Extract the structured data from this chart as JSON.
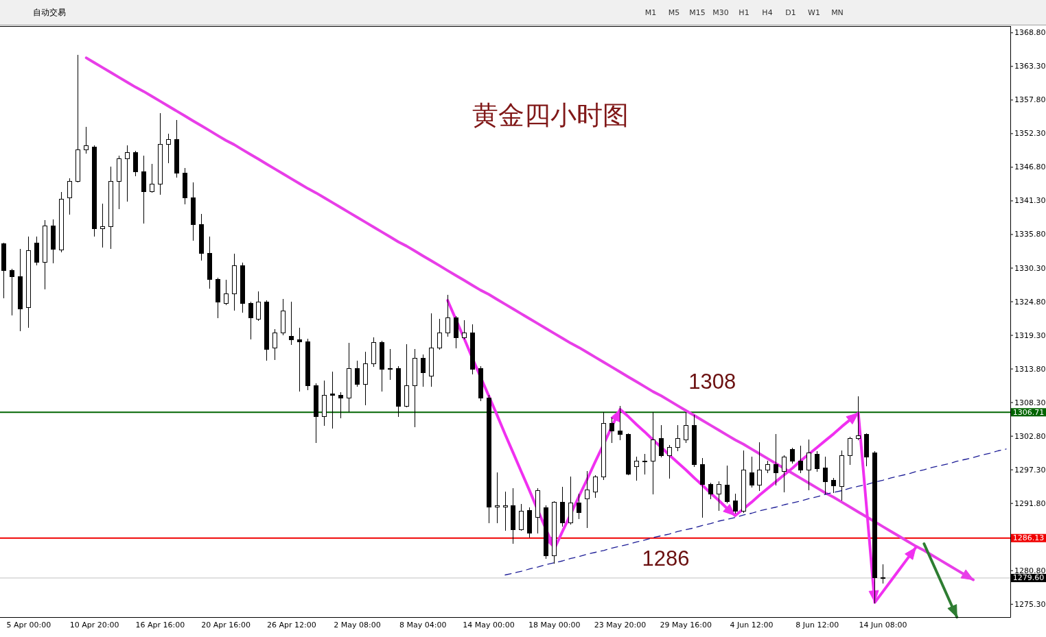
{
  "chart_data": [
    {
      "type": "other",
      "annotations": [
        "自动交易",
        "M1",
        "M5",
        "M15",
        "M30",
        "H1",
        "H4",
        "D1",
        "W1",
        "MN"
      ]
    },
    {
      "type": "candlestick",
      "title": "黄金四小时图",
      "color": "#000000",
      "categories": [
        null,
        null,
        null,
        "5 Apr 00:00",
        null,
        null,
        null,
        null,
        null,
        null,
        null,
        "10 Apr 20:00",
        null,
        null,
        null,
        null,
        null,
        null,
        null,
        "16 Apr 16:00",
        null,
        null,
        null,
        null,
        null,
        null,
        null,
        "20 Apr 16:00",
        null,
        null,
        null,
        null,
        null,
        null,
        null,
        "26 Apr 12:00",
        null,
        null,
        null,
        null,
        null,
        null,
        null,
        "2 May 08:00",
        null,
        null,
        null,
        null,
        null,
        null,
        null,
        "8 May 04:00",
        null,
        null,
        null,
        null,
        null,
        null,
        null,
        "14 May 00:00",
        null,
        null,
        null,
        null,
        null,
        null,
        null,
        "18 May 00:00",
        null,
        null,
        null,
        null,
        null,
        null,
        null,
        "23 May 20:00",
        null,
        null,
        null,
        null,
        null,
        null,
        null,
        "29 May 16:00",
        null,
        null,
        null,
        null,
        null,
        null,
        null,
        "4 Jun 12:00",
        null,
        null,
        null,
        null,
        null,
        null,
        null,
        "8 Jun 12:00",
        null,
        null,
        null,
        null,
        null,
        null,
        null,
        "14 Jun 08:00",
        null,
        null,
        null,
        null,
        null,
        null,
        null,
        null,
        null,
        null,
        null,
        null,
        null,
        null,
        null
      ],
      "ohlc": [
        [
          1334.3,
          1334.5,
          1325.5,
          1330.0
        ],
        [
          1330.0,
          1330.2,
          1322.7,
          1328.9
        ],
        [
          1328.9,
          1333.4,
          1320.1,
          1323.7
        ],
        [
          1323.9,
          1335.5,
          1320.7,
          1333.2
        ],
        [
          1334.5,
          1335.5,
          1330.9,
          1331.3
        ],
        [
          1331.3,
          1338.1,
          1326.9,
          1337.3
        ],
        [
          1337.3,
          1338.3,
          1331.2,
          1333.4
        ],
        [
          1333.3,
          1342.8,
          1333.0,
          1341.6
        ],
        [
          1341.8,
          1345.0,
          1339.2,
          1344.6
        ],
        [
          1344.6,
          1365.2,
          1344.4,
          1349.7
        ],
        [
          1349.7,
          1353.4,
          1349.1,
          1350.4
        ],
        [
          1350.2,
          1350.4,
          1335.6,
          1336.8
        ],
        [
          1336.8,
          1340.9,
          1333.8,
          1337.1
        ],
        [
          1337.1,
          1346.9,
          1333.6,
          1344.6
        ],
        [
          1344.6,
          1348.7,
          1340.1,
          1348.2
        ],
        [
          1348.2,
          1350.4,
          1341.3,
          1349.3
        ],
        [
          1349.3,
          1349.5,
          1345.4,
          1346.1
        ],
        [
          1346.1,
          1348.7,
          1337.7,
          1342.9
        ],
        [
          1342.9,
          1347.4,
          1342.7,
          1344.1
        ],
        [
          1344.1,
          1355.7,
          1342.4,
          1350.6
        ],
        [
          1350.6,
          1352.3,
          1347.6,
          1351.4
        ],
        [
          1351.4,
          1354.5,
          1345.2,
          1345.9
        ],
        [
          1345.9,
          1346.7,
          1340.9,
          1341.8
        ],
        [
          1341.8,
          1344.3,
          1334.9,
          1337.5
        ],
        [
          1337.5,
          1339.2,
          1331.7,
          1332.8
        ],
        [
          1332.8,
          1335.5,
          1327.0,
          1328.5
        ],
        [
          1328.5,
          1328.7,
          1322.2,
          1324.8
        ],
        [
          1324.6,
          1328.4,
          1324.4,
          1326.1
        ],
        [
          1326.1,
          1332.7,
          1323.5,
          1330.8
        ],
        [
          1330.8,
          1331.2,
          1323.1,
          1324.6
        ],
        [
          1324.6,
          1324.8,
          1318.8,
          1322.2
        ],
        [
          1322.0,
          1326.5,
          1321.8,
          1324.8
        ],
        [
          1324.8,
          1325.0,
          1315.3,
          1317.1
        ],
        [
          1317.3,
          1320.3,
          1315.4,
          1319.8
        ],
        [
          1319.8,
          1325.2,
          1319.4,
          1323.3
        ],
        [
          1319.2,
          1324.8,
          1317.9,
          1318.6
        ],
        [
          1318.6,
          1320.5,
          1310.2,
          1318.3
        ],
        [
          1318.3,
          1318.8,
          1310.4,
          1311.1
        ],
        [
          1311.1,
          1311.5,
          1301.8,
          1306.1
        ],
        [
          1306.1,
          1311.9,
          1304.6,
          1309.5
        ],
        [
          1309.8,
          1313.4,
          1304.2,
          1309.6
        ],
        [
          1309.6,
          1310.0,
          1305.9,
          1309.1
        ],
        [
          1309.1,
          1318.1,
          1306.8,
          1313.9
        ],
        [
          1313.9,
          1315.1,
          1311.0,
          1311.3
        ],
        [
          1311.3,
          1316.6,
          1308.0,
          1314.7
        ],
        [
          1314.7,
          1319.0,
          1314.3,
          1318.2
        ],
        [
          1318.2,
          1318.4,
          1310.2,
          1313.8
        ],
        [
          1313.9,
          1317.1,
          1312.1,
          1313.8
        ],
        [
          1313.9,
          1314.3,
          1306.1,
          1307.8
        ],
        [
          1307.8,
          1317.9,
          1307.6,
          1311.1
        ],
        [
          1311.1,
          1317.1,
          1304.4,
          1315.6
        ],
        [
          1315.6,
          1316.2,
          1311.0,
          1313.3
        ],
        [
          1312.7,
          1322.9,
          1311.0,
          1317.3
        ],
        [
          1317.3,
          1322.0,
          1317.1,
          1319.7
        ],
        [
          1319.7,
          1325.9,
          1319.2,
          1322.2
        ],
        [
          1322.2,
          1322.4,
          1317.3,
          1319.0
        ],
        [
          1319.0,
          1321.8,
          1318.8,
          1319.7
        ],
        [
          1319.7,
          1321.1,
          1313.0,
          1313.8
        ],
        [
          1313.9,
          1314.3,
          1308.7,
          1309.1
        ],
        [
          1309.1,
          1309.5,
          1288.7,
          1291.3
        ],
        [
          1291.3,
          1296.9,
          1288.7,
          1291.5
        ],
        [
          1291.3,
          1293.7,
          1287.4,
          1291.5
        ],
        [
          1291.5,
          1294.3,
          1285.3,
          1287.6
        ],
        [
          1287.6,
          1291.7,
          1287.4,
          1290.6
        ],
        [
          1290.7,
          1291.1,
          1286.3,
          1287.0
        ],
        [
          1289.6,
          1294.3,
          1287.0,
          1293.9
        ],
        [
          1291.2,
          1291.5,
          1282.9,
          1283.3
        ],
        [
          1283.3,
          1292.2,
          1282.1,
          1292.0
        ],
        [
          1292.0,
          1294.5,
          1288.1,
          1288.7
        ],
        [
          1288.7,
          1296.2,
          1288.5,
          1291.9
        ],
        [
          1291.9,
          1293.4,
          1289.4,
          1290.4
        ],
        [
          1292.6,
          1297.1,
          1287.9,
          1294.1
        ],
        [
          1293.7,
          1296.4,
          1292.8,
          1296.2
        ],
        [
          1296.2,
          1306.7,
          1295.8,
          1305.0
        ],
        [
          1305.0,
          1305.9,
          1301.8,
          1303.7
        ],
        [
          1303.7,
          1307.8,
          1302.3,
          1303.1
        ],
        [
          1303.1,
          1303.3,
          1296.5,
          1296.7
        ],
        [
          1297.9,
          1299.4,
          1295.6,
          1298.8
        ],
        [
          1298.8,
          1299.9,
          1296.7,
          1298.8
        ],
        [
          1298.8,
          1306.7,
          1293.4,
          1302.3
        ],
        [
          1302.5,
          1304.6,
          1299.4,
          1299.7
        ],
        [
          1299.7,
          1301.4,
          1296.0,
          1301.0
        ],
        [
          1301.0,
          1304.6,
          1300.5,
          1302.5
        ],
        [
          1302.2,
          1306.7,
          1301.8,
          1304.6
        ],
        [
          1304.6,
          1306.3,
          1297.9,
          1298.2
        ],
        [
          1298.2,
          1299.2,
          1289.6,
          1295.0
        ],
        [
          1295.0,
          1295.2,
          1292.6,
          1293.4
        ],
        [
          1293.4,
          1295.4,
          1290.7,
          1295.0
        ],
        [
          1294.9,
          1298.0,
          1291.9,
          1292.2
        ],
        [
          1292.3,
          1293.4,
          1290.2,
          1290.6
        ],
        [
          1290.6,
          1300.5,
          1290.4,
          1297.3
        ],
        [
          1296.9,
          1299.5,
          1294.5,
          1294.9
        ],
        [
          1294.9,
          1301.8,
          1293.9,
          1297.3
        ],
        [
          1297.3,
          1298.8,
          1296.9,
          1298.2
        ],
        [
          1298.2,
          1303.1,
          1294.9,
          1296.9
        ],
        [
          1297.1,
          1299.7,
          1293.7,
          1299.5
        ],
        [
          1300.7,
          1300.9,
          1298.4,
          1298.8
        ],
        [
          1298.8,
          1301.2,
          1296.9,
          1297.3
        ],
        [
          1297.3,
          1302.2,
          1294.1,
          1300.1
        ],
        [
          1299.9,
          1300.3,
          1297.1,
          1297.5
        ],
        [
          1297.7,
          1299.5,
          1293.4,
          1295.4
        ],
        [
          1295.6,
          1296.0,
          1293.6,
          1294.7
        ],
        [
          1294.6,
          1300.5,
          1292.4,
          1299.7
        ],
        [
          1299.7,
          1302.7,
          1298.2,
          1302.5
        ],
        [
          1302.5,
          1309.3,
          1302.3,
          1302.9
        ],
        [
          1303.1,
          1303.3,
          1298.0,
          1299.5
        ],
        [
          1300.1,
          1300.3,
          1275.6,
          1279.7
        ],
        [
          1279.7,
          1281.8,
          1278.8,
          1279.6
        ],
        null,
        null,
        null,
        null,
        null,
        null,
        null,
        null,
        null,
        null,
        null,
        null,
        null,
        null,
        null
      ],
      "ylim": [
        1273.2,
        1369.9
      ],
      "yticks": [
        {
          "value": 1275.3,
          "label": "1275.30"
        },
        {
          "value": 1280.8,
          "label": "1280.80"
        },
        {
          "value": 1291.8,
          "label": "1291.80"
        },
        {
          "value": 1297.3,
          "label": "1297.30"
        },
        {
          "value": 1302.8,
          "label": "1302.80"
        },
        {
          "value": 1308.3,
          "label": "1308.30"
        },
        {
          "value": 1313.8,
          "label": "1313.80"
        },
        {
          "value": 1319.3,
          "label": "1319.30"
        },
        {
          "value": 1324.8,
          "label": "1324.80"
        },
        {
          "value": 1330.3,
          "label": "1330.30"
        },
        {
          "value": 1335.8,
          "label": "1335.80"
        },
        {
          "value": 1341.3,
          "label": "1341.30"
        },
        {
          "value": 1346.8,
          "label": "1346.80"
        },
        {
          "value": 1352.3,
          "label": "1352.30"
        },
        {
          "value": 1357.8,
          "label": "1357.80"
        },
        {
          "value": 1363.3,
          "label": "1363.30"
        },
        {
          "value": 1368.8,
          "label": "1368.80"
        }
      ],
      "ref_lines": [
        {
          "axis": "y",
          "value": 1306.71,
          "label": "1306.71",
          "color": "#006400"
        },
        {
          "axis": "y",
          "value": 1286.13,
          "label": "1286.13",
          "color": "#f00000"
        },
        {
          "axis": "y",
          "value": 1279.6,
          "label": "1279.60",
          "color": "#c0c0c0"
        }
      ],
      "series": [
        {
          "type": "line",
          "color": "#e83ee8",
          "line_style": "solid",
          "values": [
            null,
            null,
            null,
            null,
            null,
            null,
            null,
            null,
            null,
            null,
            1364.7,
            1363.9,
            1363.1,
            1362.3,
            1361.5,
            1360.7,
            1359.9,
            1359.2,
            1358.4,
            1357.6,
            1356.8,
            1356.0,
            1355.2,
            1354.4,
            1353.6,
            1352.8,
            1352.0,
            1351.2,
            1350.5,
            1349.7,
            1348.9,
            1348.1,
            1347.3,
            1346.5,
            1345.7,
            1344.9,
            1344.1,
            1343.3,
            1342.6,
            1341.8,
            1341.0,
            1340.2,
            1339.4,
            1338.6,
            1337.8,
            1337.0,
            1336.2,
            1335.4,
            1334.6,
            1333.9,
            1333.1,
            1332.3,
            1331.5,
            1330.7,
            1329.9,
            1329.1,
            1328.3,
            1327.5,
            1326.7,
            1326.0,
            1325.2,
            1324.4,
            1323.6,
            1322.8,
            1322.0,
            1321.2,
            1320.4,
            1319.6,
            1318.8,
            1318.0,
            1317.3,
            1316.5,
            1315.7,
            1314.9,
            1314.1,
            1313.3,
            1312.5,
            1311.7,
            1310.9,
            1310.1,
            1309.4,
            1308.6,
            1307.8,
            1307.0,
            1306.2,
            1305.4,
            1304.6,
            1303.8,
            1303.0,
            1302.2,
            1301.5,
            1300.7,
            1299.9,
            1299.1,
            1298.3,
            1297.5,
            1296.7,
            1295.9,
            1295.1,
            1294.3,
            1293.5,
            1292.8,
            1292.0,
            1291.2,
            1290.4,
            1289.6,
            1288.8,
            1288.0,
            1287.2,
            1286.4,
            1285.6,
            1284.8,
            1284.1,
            1283.3,
            1282.5,
            1281.7,
            1280.9,
            1280.1,
            1279.3,
            null,
            null,
            null,
            null
          ]
        },
        {
          "type": "line",
          "color": "#1c1c96",
          "line_style": "dashed",
          "values": [
            null,
            null,
            null,
            null,
            null,
            null,
            null,
            null,
            null,
            null,
            null,
            null,
            null,
            null,
            null,
            null,
            null,
            null,
            null,
            null,
            null,
            null,
            null,
            null,
            null,
            null,
            null,
            null,
            null,
            null,
            null,
            null,
            null,
            null,
            null,
            null,
            null,
            null,
            null,
            null,
            null,
            null,
            null,
            null,
            null,
            null,
            null,
            null,
            null,
            null,
            null,
            null,
            null,
            null,
            null,
            null,
            null,
            null,
            null,
            null,
            null,
            1280.1,
            1280.4,
            1280.7,
            1281.1,
            1281.4,
            1281.8,
            1282.1,
            1282.4,
            1282.8,
            1283.1,
            1283.5,
            1283.8,
            1284.1,
            1284.5,
            1284.8,
            1285.1,
            1285.5,
            1285.8,
            1286.2,
            1286.5,
            1286.8,
            1287.2,
            1287.5,
            1287.8,
            1288.2,
            1288.5,
            1288.9,
            1289.2,
            1289.5,
            1289.9,
            1290.2,
            1290.6,
            1290.9,
            1291.2,
            1291.6,
            1291.9,
            1292.2,
            1292.6,
            1292.9,
            1293.3,
            1293.6,
            1293.9,
            1294.3,
            1294.6,
            1294.9,
            1295.3,
            1295.6,
            1296.0,
            1296.3,
            1296.6,
            1297.0,
            1297.3,
            1297.7,
            1298.0,
            1298.3,
            1298.7,
            1299.0,
            1299.3,
            1299.7,
            1300.0,
            1300.4,
            1300.7
          ]
        },
        {
          "type": "line",
          "color": "#f030f0",
          "line_style": "solid",
          "values": [
            null,
            null,
            null,
            null,
            null,
            null,
            null,
            null,
            null,
            null,
            null,
            null,
            null,
            null,
            null,
            null,
            null,
            null,
            null,
            null,
            null,
            null,
            null,
            null,
            null,
            null,
            null,
            null,
            null,
            null,
            null,
            null,
            null,
            null,
            null,
            null,
            null,
            null,
            null,
            null,
            null,
            null,
            null,
            null,
            null,
            null,
            null,
            null,
            null,
            null,
            null,
            null,
            null,
            null,
            1325.0,
            1321.9,
            1318.8,
            1315.6,
            1312.5,
            1309.4,
            1306.3,
            1303.1,
            1300.0,
            1296.9,
            1293.8,
            1290.6,
            1287.5,
            1284.4,
            1287.3,
            1290.1,
            1293.0,
            1295.8,
            1298.7,
            1301.5,
            1304.4,
            1307.2,
            1306.0,
            1304.7,
            1303.5,
            1302.2,
            1301.0,
            1299.7,
            1298.5,
            1297.3,
            1296.0,
            1294.8,
            1293.5,
            1292.3,
            1291.0,
            1289.8,
            1290.9,
            1292.0,
            1293.2,
            1294.3,
            1295.4,
            1296.5,
            1297.6,
            1298.8,
            1299.9,
            1301.0,
            1302.1,
            1303.2,
            1304.4,
            1305.5,
            1306.6,
            1291.1,
            1275.6,
            1277.4,
            1279.2,
            1281.0,
            1282.8,
            1284.6,
            null,
            null,
            null,
            null,
            null,
            null,
            null,
            null,
            null,
            null,
            null
          ]
        },
        {
          "type": "line",
          "color": "#2e7d32",
          "line_style": "solid",
          "values": [
            null,
            null,
            null,
            null,
            null,
            null,
            null,
            null,
            null,
            null,
            null,
            null,
            null,
            null,
            null,
            null,
            null,
            null,
            null,
            null,
            null,
            null,
            null,
            null,
            null,
            null,
            null,
            null,
            null,
            null,
            null,
            null,
            null,
            null,
            null,
            null,
            null,
            null,
            null,
            null,
            null,
            null,
            null,
            null,
            null,
            null,
            null,
            null,
            null,
            null,
            null,
            null,
            null,
            null,
            null,
            null,
            null,
            null,
            null,
            null,
            null,
            null,
            null,
            null,
            null,
            null,
            null,
            null,
            null,
            null,
            null,
            null,
            null,
            null,
            null,
            null,
            null,
            null,
            null,
            null,
            null,
            null,
            null,
            null,
            null,
            null,
            null,
            null,
            null,
            null,
            null,
            null,
            null,
            null,
            null,
            null,
            null,
            null,
            null,
            null,
            null,
            null,
            null,
            null,
            null,
            null,
            null,
            null,
            null,
            null,
            null,
            null,
            1285.2,
            1282.2,
            1279.2,
            1276.2,
            1273.2,
            null,
            null,
            null,
            null,
            null,
            null
          ]
        }
      ],
      "annotations": [
        "1308",
        "1286"
      ]
    }
  ]
}
